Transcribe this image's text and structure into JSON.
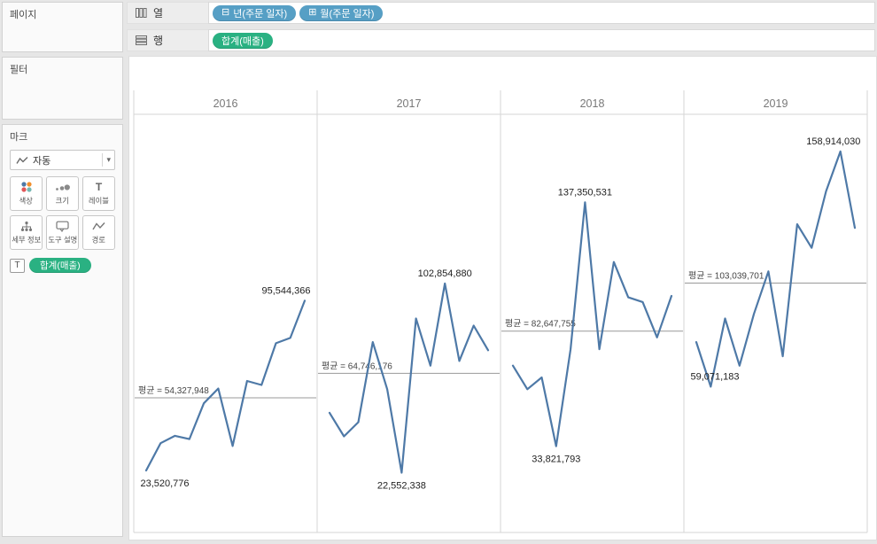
{
  "colors": {
    "pill_blue": "#569fc5",
    "pill_green": "#2ab182",
    "line": "#4e79a7",
    "grid_line": "#d6d6d6",
    "avg_line": "#999999",
    "header_text": "#787878",
    "avg_label_text": "#444444",
    "annotation_text": "#222222"
  },
  "sidebar": {
    "pages": {
      "title": "페이지"
    },
    "filters": {
      "title": "필터"
    },
    "marks": {
      "title": "마크",
      "mark_type": "자동",
      "dropdown_caret": "▾",
      "buttons": [
        {
          "id": "color",
          "label": "색상"
        },
        {
          "id": "size",
          "label": "크기"
        },
        {
          "id": "label",
          "label": "레이블"
        },
        {
          "id": "detail",
          "label": "세부 정보"
        },
        {
          "id": "tooltip",
          "label": "도구 설명"
        },
        {
          "id": "path",
          "label": "경로"
        }
      ],
      "text_pill": {
        "prefix": "T",
        "label": "합계(매출)"
      }
    }
  },
  "shelves": {
    "columns": {
      "label": "열",
      "pills": [
        {
          "icon": "⊟",
          "label": "년(주문 일자)"
        },
        {
          "icon": "⊞",
          "label": "월(주문 일자)"
        }
      ]
    },
    "rows": {
      "label": "행",
      "pills": [
        {
          "label": "합계(매출)"
        }
      ]
    }
  },
  "chart_data": {
    "type": "line",
    "x_unit": "월(주문 일자)",
    "points_per_panel": 12,
    "series_name": "합계(매출)",
    "legend": "none",
    "grid": "panel-borders-only",
    "panels": [
      {
        "year": "2016",
        "average": 54327948,
        "average_label": "평균 = 54,327,948",
        "values": [
          23520776,
          35100000,
          38200000,
          36800000,
          52000000,
          58300000,
          33900000,
          61500000,
          59800000,
          77500000,
          79770234,
          95544366
        ],
        "annotations": [
          {
            "index": 0,
            "text": "23,520,776",
            "pos": "below"
          },
          {
            "index": 11,
            "text": "95,544,366",
            "pos": "above"
          }
        ]
      },
      {
        "year": "2017",
        "average": 64746176,
        "average_label": "평균 = 64,746,176",
        "values": [
          48000000,
          38000000,
          44000000,
          78000000,
          58000000,
          22552338,
          88000000,
          68000000,
          102854880,
          70000000,
          85000000,
          74546894
        ],
        "annotations": [
          {
            "index": 5,
            "text": "22,552,338",
            "pos": "below"
          },
          {
            "index": 8,
            "text": "102,854,880",
            "pos": "above"
          }
        ]
      },
      {
        "year": "2018",
        "average": 82647755,
        "average_label": "평균 = 82,647,755",
        "values": [
          68000000,
          58000000,
          63000000,
          33821793,
          75000000,
          137350531,
          75000000,
          112000000,
          97000000,
          95000000,
          80000000,
          97600736
        ],
        "annotations": [
          {
            "index": 3,
            "text": "33,821,793",
            "pos": "below"
          },
          {
            "index": 5,
            "text": "137,350,531",
            "pos": "above"
          }
        ]
      },
      {
        "year": "2019",
        "average": 103039701,
        "average_label": "평균 = 103,039,701",
        "values": [
          78000000,
          59071183,
          88000000,
          68000000,
          90000000,
          108000000,
          72000000,
          128000000,
          118000000,
          142000000,
          158914030,
          126491199
        ],
        "annotations": [
          {
            "index": 1,
            "text": "59,071,183",
            "pos": "above"
          },
          {
            "index": 10,
            "text": "158,914,030",
            "pos": "above"
          }
        ]
      }
    ]
  }
}
